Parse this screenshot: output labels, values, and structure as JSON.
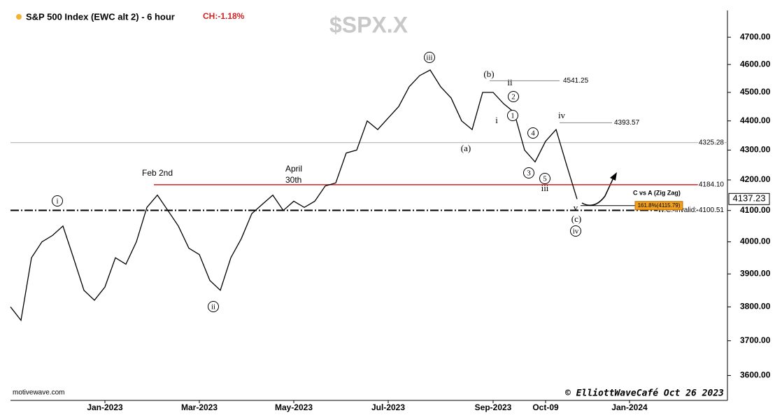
{
  "chart_data": {
    "type": "line",
    "title": "$SPX.X",
    "header": "S&P 500 Index (EWC alt 2) - 6 hour",
    "change": "CH:-1.18%",
    "log_scale": true,
    "color": "#000000",
    "categories": [
      null,
      null,
      null,
      null,
      null,
      null,
      null,
      null,
      null,
      "Jan-2023",
      null,
      null,
      null,
      null,
      null,
      null,
      null,
      null,
      "Mar-2023",
      null,
      null,
      null,
      null,
      null,
      null,
      null,
      null,
      "May-2023",
      null,
      null,
      null,
      null,
      null,
      null,
      null,
      null,
      "Jul-2023",
      null,
      null,
      null,
      null,
      null,
      null,
      null,
      null,
      null,
      "Sep-2023",
      null,
      null,
      null,
      null,
      "Oct-09",
      null,
      null,
      null,
      null,
      null,
      null,
      null,
      "Jan-2024",
      null,
      null,
      null,
      null,
      null,
      null,
      null,
      null,
      null
    ],
    "values": [
      3800,
      3760,
      3950,
      4000,
      4020,
      4050,
      3950,
      3850,
      3820,
      3860,
      3950,
      3930,
      4000,
      4110,
      4150,
      4100,
      4050,
      3980,
      3960,
      3880,
      3850,
      3950,
      4010,
      4090,
      4120,
      4150,
      4100,
      4130,
      4110,
      4130,
      4180,
      4190,
      4290,
      4300,
      4400,
      4370,
      4410,
      4450,
      4520,
      4560,
      4580,
      4520,
      4480,
      4400,
      4370,
      4500,
      4500,
      4460,
      4430,
      4300,
      4260,
      4330,
      4370,
      4250,
      4137,
      null,
      null,
      null,
      null,
      null,
      null,
      null,
      null,
      null,
      null,
      null,
      null,
      null,
      null
    ],
    "ylim": [
      3530,
      4800
    ],
    "yticks": [
      {
        "value": 3600,
        "label": "3600.00"
      },
      {
        "value": 3700,
        "label": "3700.00"
      },
      {
        "value": 3800,
        "label": "3800.00"
      },
      {
        "value": 3900,
        "label": "3900.00"
      },
      {
        "value": 4000,
        "label": "4000.00"
      },
      {
        "value": 4100,
        "label": "4100.00"
      },
      {
        "value": 4200,
        "label": "4200.00"
      },
      {
        "value": 4300,
        "label": "4300.00"
      },
      {
        "value": 4400,
        "label": "4400.00"
      },
      {
        "value": 4500,
        "label": "4500.00"
      },
      {
        "value": 4600,
        "label": "4600.00"
      },
      {
        "value": 4700,
        "label": "4700.00"
      }
    ],
    "levels": [
      {
        "value": 4541.25,
        "label": "4541.25",
        "color": "#888888"
      },
      {
        "value": 4393.57,
        "label": "4393.57",
        "color": "#888888"
      },
      {
        "value": 4325.28,
        "label": "4325.28",
        "color": "#aaaaaa"
      },
      {
        "value": 4184.1,
        "label": "4184.10",
        "color": "#d62020"
      },
      {
        "value": 4100.51,
        "label": "W.C. invalid: 4100.51",
        "color": "#000000"
      }
    ],
    "last_price": {
      "value": 4137.23,
      "label": "4137.23"
    },
    "target": {
      "value": 4115.79,
      "label": "161.8%(4115.79)"
    },
    "target_title": "C vs A (Zig Zag)",
    "notes": [
      "Feb 2nd",
      "April",
      "30th"
    ],
    "wave_labels": [
      "i",
      "ii",
      "iii",
      "iv",
      "1",
      "2",
      "3",
      "4",
      "5",
      "(b)",
      "ii",
      "(a)",
      "i",
      "iv",
      "iii",
      "(c)",
      "v"
    ],
    "source": "motivewave.com",
    "credit": "© ElliottWaveCafé Oct 26 2023"
  }
}
